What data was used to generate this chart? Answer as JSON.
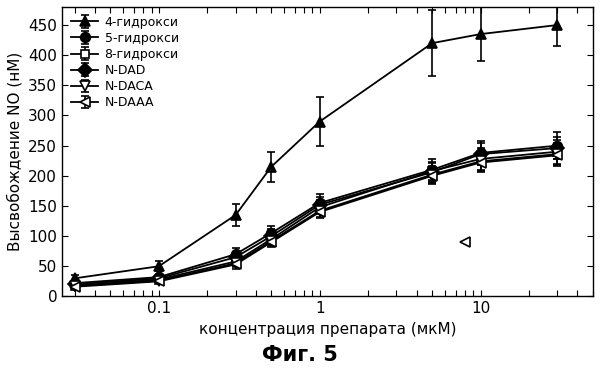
{
  "x": [
    0.03,
    0.1,
    0.3,
    0.5,
    1.0,
    5.0,
    10.0,
    30.0
  ],
  "series": {
    "4-гидрокси": {
      "y": [
        30,
        50,
        135,
        215,
        290,
        420,
        435,
        450
      ],
      "yerr": [
        5,
        8,
        18,
        25,
        40,
        55,
        45,
        35
      ],
      "marker": "^",
      "markersize": 7,
      "color": "black",
      "mfc": "black",
      "mec": "black",
      "linestyle": "-"
    },
    "5-гидрокси": {
      "y": [
        22,
        32,
        70,
        105,
        155,
        210,
        238,
        250
      ],
      "yerr": [
        4,
        5,
        10,
        12,
        15,
        18,
        20,
        22
      ],
      "marker": "o",
      "markersize": 7,
      "color": "black",
      "mfc": "black",
      "mec": "black",
      "linestyle": "-"
    },
    "8-гидрокси": {
      "y": [
        18,
        28,
        58,
        95,
        148,
        208,
        228,
        240
      ],
      "yerr": [
        3,
        4,
        8,
        10,
        12,
        15,
        18,
        20
      ],
      "marker": "s",
      "markersize": 6,
      "color": "black",
      "mfc": "white",
      "mec": "black",
      "linestyle": "-"
    },
    "N-DAD": {
      "y": [
        20,
        30,
        65,
        100,
        152,
        206,
        236,
        246
      ],
      "yerr": [
        3,
        4,
        9,
        11,
        13,
        16,
        18,
        18
      ],
      "marker": "D",
      "markersize": 7,
      "color": "black",
      "mfc": "black",
      "mec": "black",
      "linestyle": "-"
    },
    "N-DACA": {
      "y": [
        17,
        26,
        55,
        92,
        142,
        202,
        224,
        236
      ],
      "yerr": [
        3,
        4,
        7,
        9,
        11,
        14,
        16,
        18
      ],
      "marker": "v",
      "markersize": 7,
      "color": "black",
      "mfc": "white",
      "mec": "black",
      "linestyle": "-"
    },
    "N-DAAA": {
      "y": [
        16,
        25,
        53,
        90,
        140,
        200,
        222,
        234
      ],
      "yerr": [
        3,
        3,
        7,
        8,
        10,
        13,
        15,
        17
      ],
      "marker": "<",
      "markersize": 7,
      "color": "black",
      "mfc": "white",
      "mec": "black",
      "linestyle": "-"
    }
  },
  "legend_order": [
    "4-гидрокси",
    "5-гидрокси",
    "8-гидрокси",
    "N-DAD",
    "N-DACA",
    "N-DAAA"
  ],
  "xlabel": "концентрация препарата (мкМ)",
  "ylabel": "Высвобождение NO (нМ)",
  "title": "Фиг. 5",
  "ylim": [
    0,
    480
  ],
  "xlim": [
    0.025,
    50
  ],
  "yticks": [
    0,
    50,
    100,
    150,
    200,
    250,
    300,
    350,
    400,
    450
  ],
  "xtick_positions": [
    0.1,
    1,
    10
  ],
  "xtick_labels": [
    "0.1",
    "1",
    "10"
  ],
  "isolated_marker_x": 8.0,
  "isolated_marker_y": 90,
  "background_color": "#ffffff"
}
